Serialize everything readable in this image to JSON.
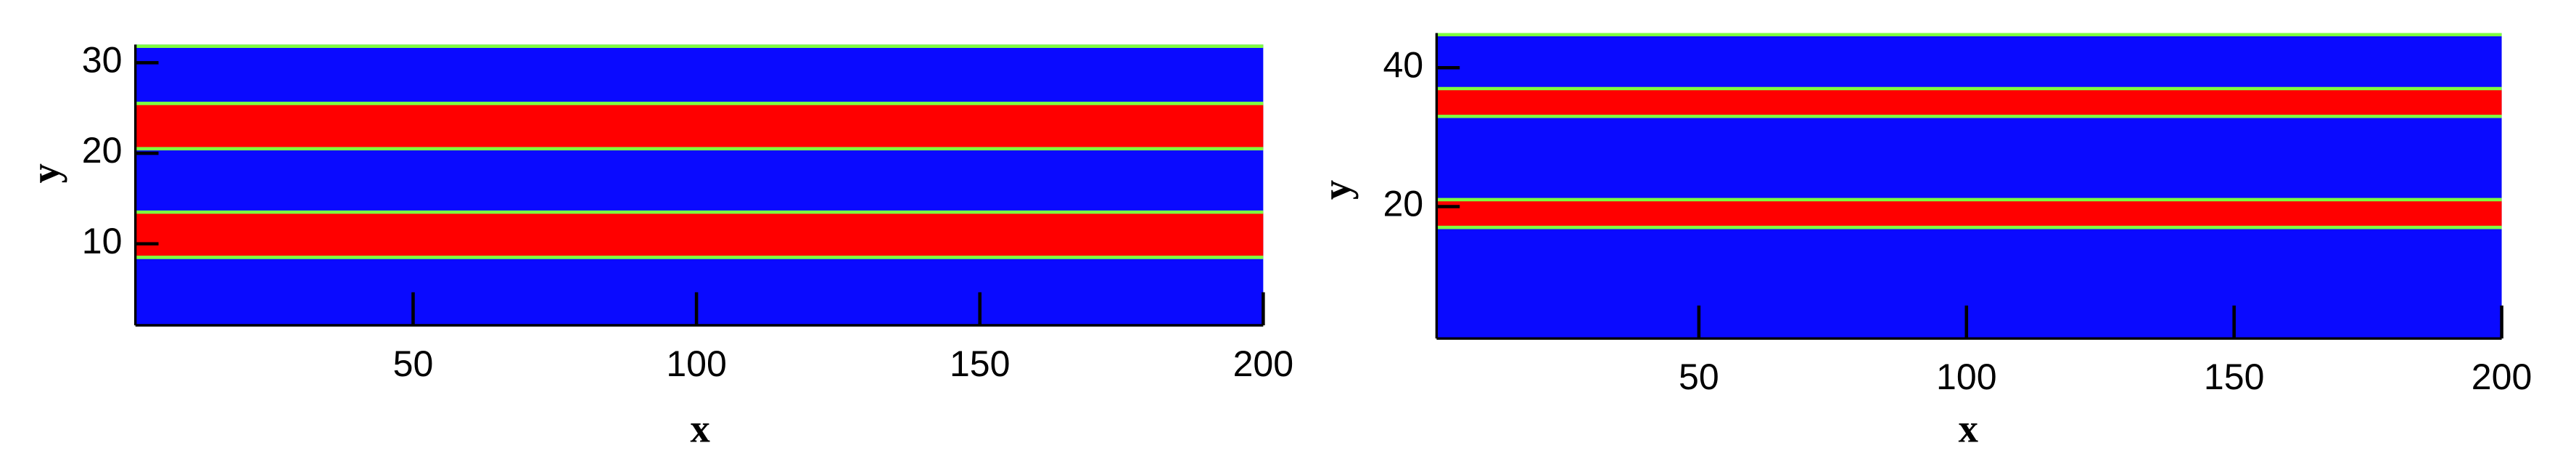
{
  "chart_data": [
    {
      "type": "heatmap",
      "xlabel": "x",
      "ylabel": "y",
      "xlim": [
        1,
        200
      ],
      "ylim": [
        1,
        32
      ],
      "xticks": [
        50,
        100,
        150,
        200
      ],
      "yticks": [
        10,
        20,
        30
      ],
      "bands": [
        [
          20.5,
          25.5
        ],
        [
          8.5,
          13.5
        ]
      ],
      "background_color": "#0a0aff",
      "band_color": "#ff0000",
      "interface_color": "#7fff3f"
    },
    {
      "type": "heatmap",
      "xlabel": "x",
      "ylabel": "y",
      "xlim": [
        1,
        200
      ],
      "ylim": [
        1,
        45
      ],
      "xticks": [
        50,
        100,
        150,
        200
      ],
      "yticks": [
        20,
        40
      ],
      "bands": [
        [
          33,
          37
        ],
        [
          17,
          21
        ]
      ],
      "background_color": "#0a0aff",
      "band_color": "#ff0000",
      "interface_color": "#7fff3f"
    }
  ]
}
